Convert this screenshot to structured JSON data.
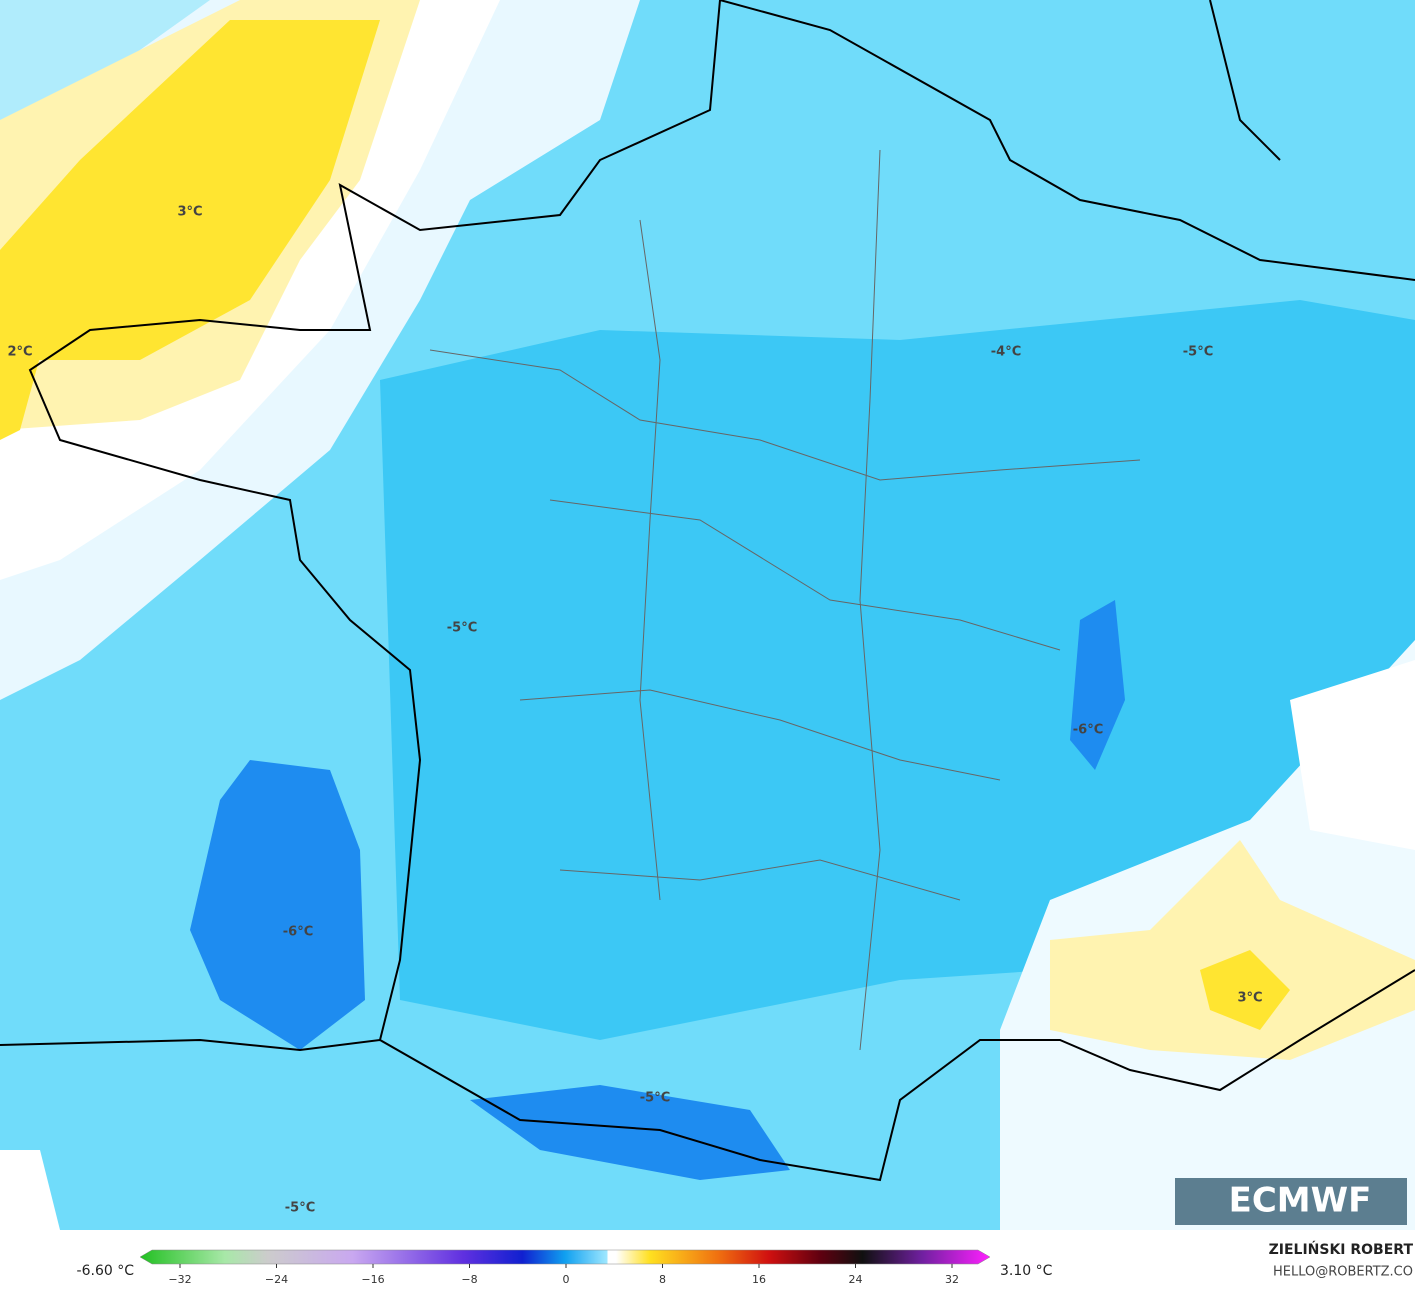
{
  "map": {
    "contour_labels": [
      "3°C",
      "2°C",
      "-4°C",
      "-5°C",
      "-5°C",
      "-6°C",
      "-6°C",
      "-5°C",
      "-5°C",
      "3°C"
    ]
  },
  "logo": "ECMWF",
  "colorbar": {
    "min_label": "-6.60 °C",
    "max_label": "3.10 °C",
    "ticks": [
      "−32",
      "−24",
      "−16",
      "−8",
      "0",
      "8",
      "16",
      "24",
      "32"
    ]
  },
  "author": {
    "name": "ZIELIŃSKI ROBERT",
    "contact": "HELLO@ROBERTZ.CO"
  }
}
